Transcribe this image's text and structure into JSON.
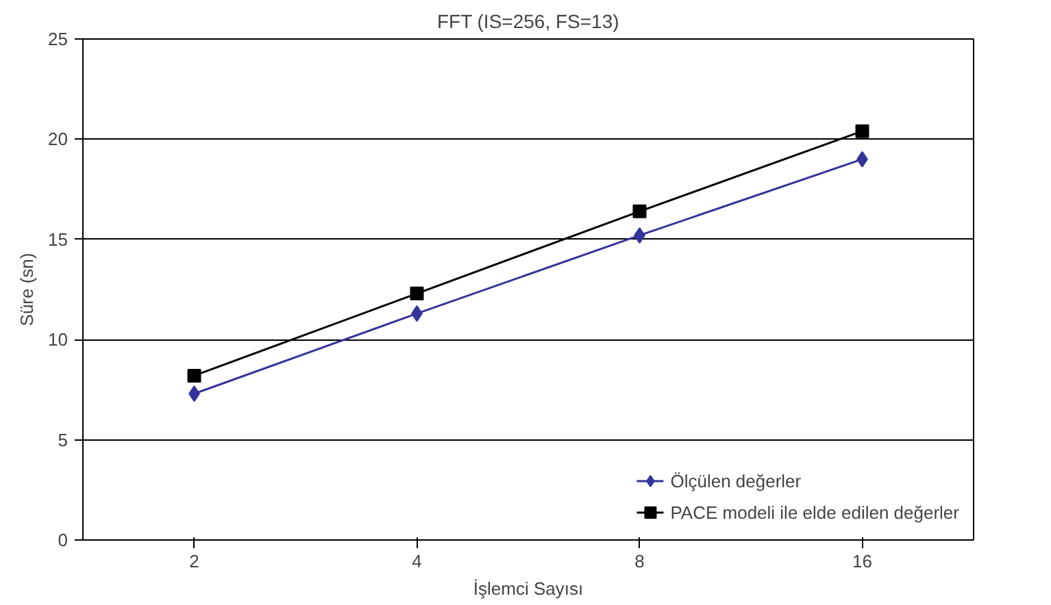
{
  "chart_data": {
    "type": "line",
    "title": "FFT (IS=256, FS=13)",
    "xlabel": "İşlemci Sayısı",
    "ylabel": "Süre (sn)",
    "categories": [
      "2",
      "4",
      "8",
      "16"
    ],
    "series": [
      {
        "name": "Ölçülen değerler",
        "color": "#333399",
        "marker": "diamond",
        "values": [
          7.3,
          11.3,
          15.2,
          19.0
        ]
      },
      {
        "name": "PACE modeli ile elde edilen değerler",
        "color": "#000000",
        "marker": "square",
        "values": [
          8.2,
          12.3,
          16.4,
          20.4
        ]
      }
    ],
    "ylim": [
      0,
      25
    ],
    "yticks": [
      0,
      5,
      10,
      15,
      20,
      25
    ],
    "grid": "y",
    "legend": "bottom right",
    "line_style": "solid"
  }
}
